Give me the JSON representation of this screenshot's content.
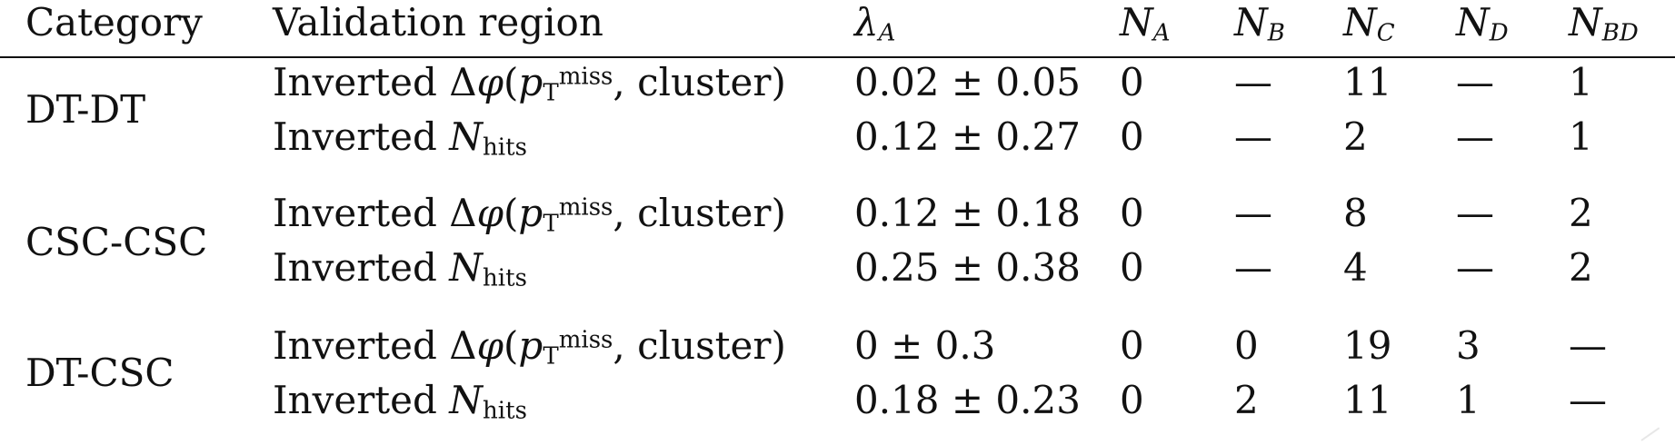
{
  "table": {
    "headers": {
      "category": "Category",
      "validation_region": "Validation region",
      "lambda_main": "λ",
      "lambda_sub": "A",
      "na_main": "N",
      "na_sub": "A",
      "nb_main": "N",
      "nb_sub": "B",
      "nc_main": "N",
      "nc_sub": "C",
      "nd_main": "N",
      "nd_sub": "D",
      "nbd_main": "N",
      "nbd_sub": "BD"
    },
    "categories": [
      {
        "name": "DT-DT",
        "rows": [
          {
            "region_text_1": "Inverted Δ",
            "region_phi": "φ",
            "region_open": "(",
            "region_p": "p",
            "region_t": "T",
            "region_miss": "miss",
            "region_close": ", cluster)",
            "lambda": "0.02 ± 0.05",
            "na": "0",
            "nb": "—",
            "nc": "11",
            "nd": "—",
            "nbd": "1"
          },
          {
            "region_text_1": "Inverted ",
            "region_n": "N",
            "region_hits": "hits",
            "lambda": "0.12 ± 0.27",
            "na": "0",
            "nb": "—",
            "nc": "2",
            "nd": "—",
            "nbd": "1"
          }
        ]
      },
      {
        "name": "CSC-CSC",
        "rows": [
          {
            "region_text_1": "Inverted Δ",
            "region_phi": "φ",
            "region_open": "(",
            "region_p": "p",
            "region_t": "T",
            "region_miss": "miss",
            "region_close": ", cluster)",
            "lambda": "0.12 ± 0.18",
            "na": "0",
            "nb": "—",
            "nc": "8",
            "nd": "—",
            "nbd": "2"
          },
          {
            "region_text_1": "Inverted ",
            "region_n": "N",
            "region_hits": "hits",
            "lambda": "0.25 ± 0.38",
            "na": "0",
            "nb": "—",
            "nc": "4",
            "nd": "—",
            "nbd": "2"
          }
        ]
      },
      {
        "name": "DT-CSC",
        "rows": [
          {
            "region_text_1": "Inverted Δ",
            "region_phi": "φ",
            "region_open": "(",
            "region_p": "p",
            "region_t": "T",
            "region_miss": "miss",
            "region_close": ", cluster)",
            "lambda": "0 ± 0.3",
            "na": "0",
            "nb": "0",
            "nc": "19",
            "nd": "3",
            "nbd": "—"
          },
          {
            "region_text_1": "Inverted ",
            "region_n": "N",
            "region_hits": "hits",
            "lambda": "0.18 ± 0.23",
            "na": "0",
            "nb": "2",
            "nc": "11",
            "nd": "1",
            "nbd": "—"
          }
        ]
      }
    ]
  }
}
